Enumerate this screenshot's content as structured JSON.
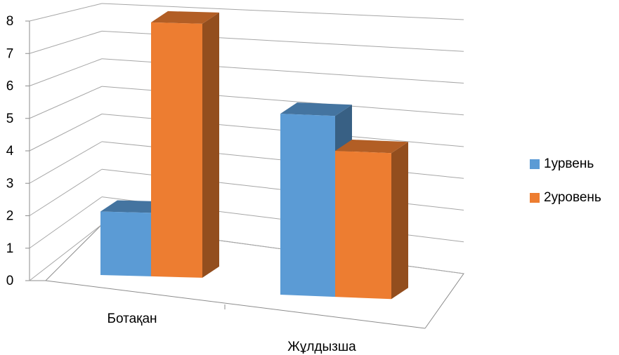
{
  "chart_data": {
    "type": "bar",
    "categories": [
      "Ботақан",
      "Жұлдызша"
    ],
    "series": [
      {
        "name": "1урвень",
        "values": [
          2,
          5.7
        ],
        "color": "#5B9BD5"
      },
      {
        "name": "2уровень",
        "values": [
          8,
          4.6
        ],
        "color": "#ED7D31"
      }
    ],
    "ylim": [
      0,
      8
    ],
    "yticks": [
      "0",
      "1",
      "2",
      "3",
      "4",
      "5",
      "6",
      "7",
      "8"
    ],
    "grid": true,
    "legend": "right",
    "style": "3d-clustered-column"
  }
}
